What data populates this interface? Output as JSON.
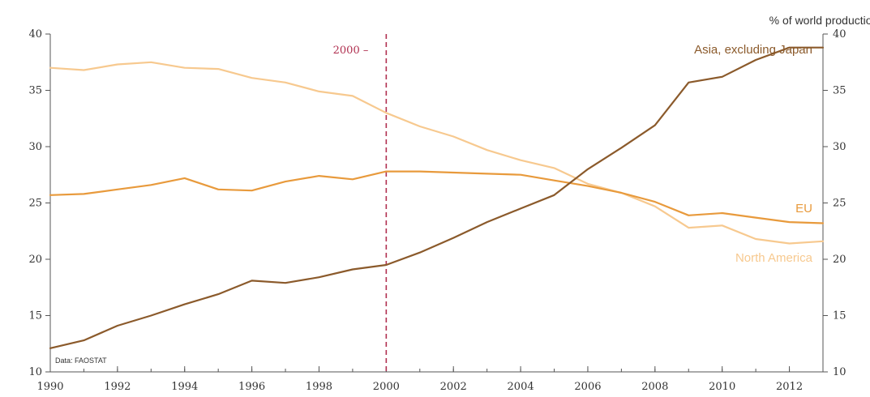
{
  "chart_data": {
    "type": "line",
    "ylabel": "% of world production",
    "ylim": [
      10,
      40
    ],
    "yticks": [
      10,
      15,
      20,
      25,
      30,
      35,
      40
    ],
    "xlim": [
      1990,
      2013
    ],
    "xticks": [
      1990,
      1992,
      1994,
      1996,
      1998,
      2000,
      2002,
      2004,
      2006,
      2008,
      2010,
      2012
    ],
    "grid": false,
    "x": [
      1990,
      1991,
      1992,
      1993,
      1994,
      1995,
      1996,
      1997,
      1998,
      1999,
      2000,
      2001,
      2002,
      2003,
      2004,
      2005,
      2006,
      2007,
      2008,
      2009,
      2010,
      2011,
      2012,
      2013
    ],
    "series": [
      {
        "name": "Asia, excluding Japan",
        "color": "#8b5a2b",
        "values": [
          12.1,
          12.8,
          14.1,
          15.0,
          16.0,
          16.9,
          18.1,
          17.9,
          18.4,
          19.1,
          19.5,
          20.6,
          21.9,
          23.3,
          24.5,
          25.7,
          28.0,
          29.9,
          31.9,
          35.7,
          36.2,
          37.7,
          38.8,
          38.8
        ]
      },
      {
        "name": "EU",
        "color": "#e89a3c",
        "values": [
          25.7,
          25.8,
          26.2,
          26.6,
          27.2,
          26.2,
          26.1,
          26.9,
          27.4,
          27.1,
          27.8,
          27.8,
          27.7,
          27.6,
          27.5,
          27.0,
          26.5,
          25.9,
          25.1,
          23.9,
          24.1,
          23.7,
          23.3,
          23.2
        ]
      },
      {
        "name": "North America",
        "color": "#f7c98f",
        "values": [
          37.0,
          36.8,
          37.3,
          37.5,
          37.0,
          36.9,
          36.1,
          35.7,
          34.9,
          34.5,
          33.0,
          31.8,
          30.9,
          29.7,
          28.8,
          28.1,
          26.7,
          25.9,
          24.7,
          22.8,
          23.0,
          21.8,
          21.4,
          21.6
        ]
      }
    ],
    "annotations": [
      {
        "text": "2000 –",
        "x": 2000,
        "style": "dashed vertical line",
        "color": "#b03050"
      }
    ],
    "source_note": "Data: FAOSTAT"
  }
}
